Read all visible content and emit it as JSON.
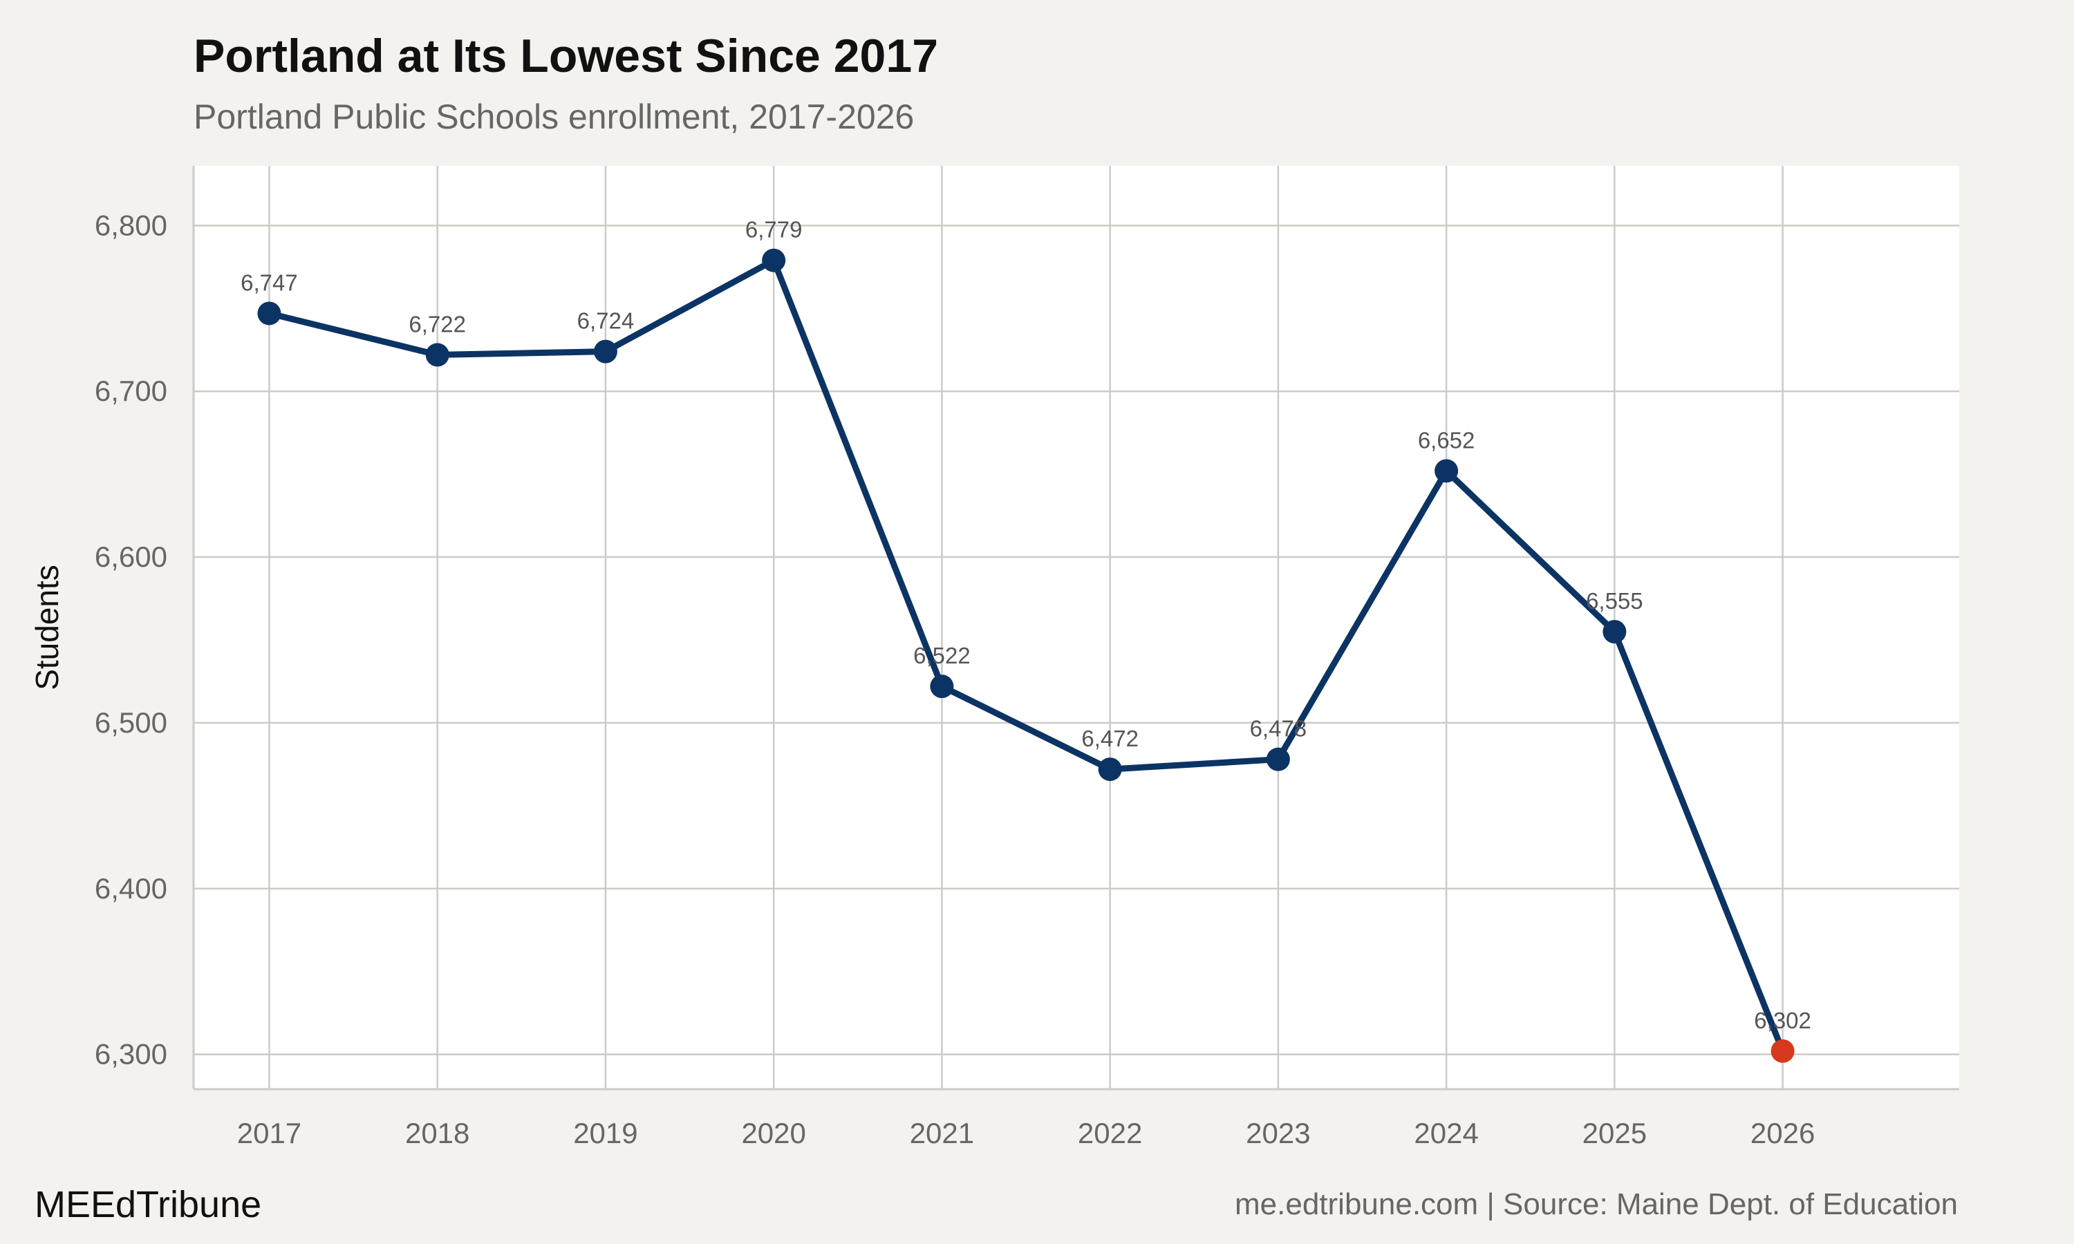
{
  "header": {
    "title": "Portland at Its Lowest Since 2017",
    "subtitle": "Portland Public Schools enrollment, 2017-2026"
  },
  "footer": {
    "brand": "MEEdTribune",
    "source": "me.edtribune.com | Source: Maine Dept. of Education"
  },
  "colors": {
    "line": "#0b3464",
    "highlight": "#d6391b",
    "grid": "#cccbc6",
    "panel": "#ffffff",
    "background": "#f4f2ee"
  },
  "chart_data": {
    "type": "line",
    "title": "Portland at Its Lowest Since 2017",
    "subtitle": "Portland Public Schools enrollment, 2017-2026",
    "xlabel": "",
    "ylabel": "Students",
    "x": [
      2017,
      2018,
      2019,
      2020,
      2021,
      2022,
      2023,
      2024,
      2025,
      2026
    ],
    "x_tick_labels": [
      "2017",
      "2018",
      "2019",
      "2020",
      "2021",
      "2022",
      "2023",
      "2024",
      "2025",
      "2026"
    ],
    "series": [
      {
        "values": [
          6747,
          6722,
          6724,
          6779,
          6522,
          6472,
          6478,
          6652,
          6555,
          6302
        ],
        "labels": [
          "6,747",
          "6,722",
          "6,724",
          "6,779",
          "6,522",
          "6,472",
          "6,478",
          "6,652",
          "6,555",
          "6,302"
        ],
        "highlight_last": true
      }
    ],
    "y_ticks": [
      6300,
      6400,
      6500,
      6600,
      6700,
      6800
    ],
    "y_tick_labels": [
      "6,300",
      "6,400",
      "6,500",
      "6,600",
      "6,700",
      "6,800"
    ],
    "ylim": [
      6279,
      6836
    ],
    "xlim": [
      2016.55,
      2027.05
    ],
    "grid": true,
    "legend": "none"
  }
}
